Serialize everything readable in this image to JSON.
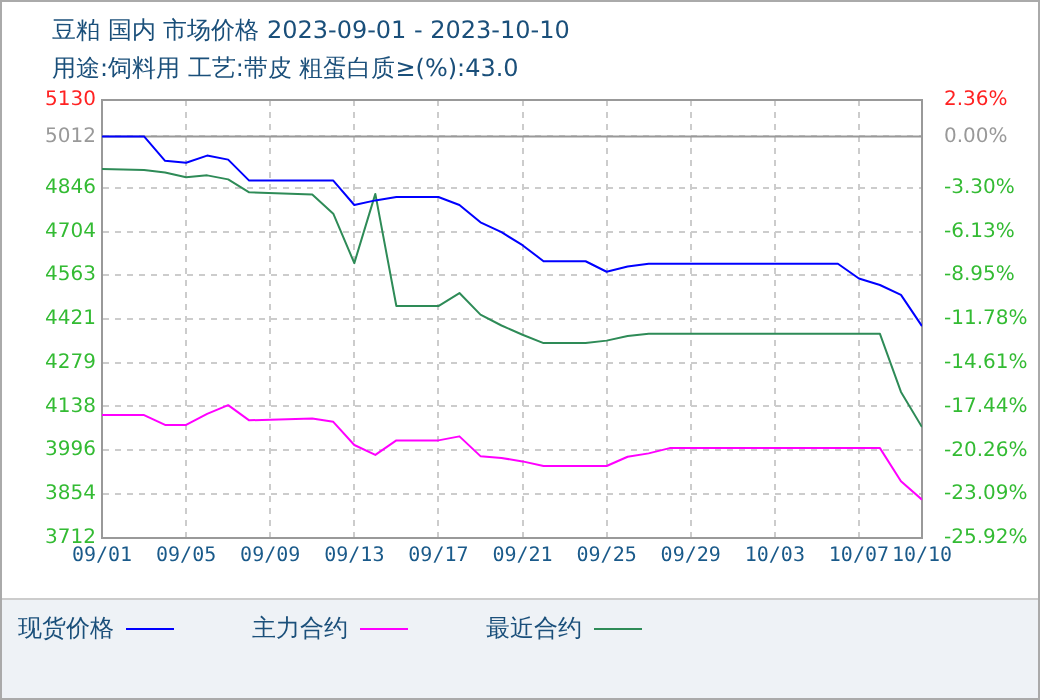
{
  "chart_data": {
    "type": "line",
    "title": "豆粕 国内 市场价格 2023-09-01 - 2023-10-10",
    "subtitle": "用途:饲料用 工艺:带皮 粗蛋白质≥(%):43.0",
    "series": [
      {
        "name": "现货价格",
        "color": "#0000ff",
        "x": [
          "2023-09-01",
          "2023-09-03",
          "2023-09-04",
          "2023-09-05",
          "2023-09-06",
          "2023-09-07",
          "2023-09-08",
          "2023-09-12",
          "2023-09-13",
          "2023-09-14",
          "2023-09-15",
          "2023-09-17",
          "2023-09-18",
          "2023-09-19",
          "2023-09-20",
          "2023-09-21",
          "2023-09-22",
          "2023-09-24",
          "2023-09-25",
          "2023-09-26",
          "2023-09-27",
          "2023-10-06",
          "2023-10-07",
          "2023-10-08",
          "2023-10-09",
          "2023-10-10"
        ],
        "values": [
          5012,
          5012,
          4933,
          4927,
          4950,
          4937,
          4869,
          4869,
          4790,
          4805,
          4816,
          4816,
          4790,
          4734,
          4702,
          4660,
          4608,
          4608,
          4574,
          4591,
          4600,
          4600,
          4552,
          4531,
          4499,
          4398
        ]
      },
      {
        "name": "主力合约",
        "color": "#ff00ff",
        "x": [
          "2023-09-01",
          "2023-09-03",
          "2023-09-04",
          "2023-09-05",
          "2023-09-06",
          "2023-09-07",
          "2023-09-08",
          "2023-09-11",
          "2023-09-12",
          "2023-09-13",
          "2023-09-14",
          "2023-09-15",
          "2023-09-17",
          "2023-09-18",
          "2023-09-19",
          "2023-09-20",
          "2023-09-21",
          "2023-09-22",
          "2023-09-25",
          "2023-09-26",
          "2023-09-27",
          "2023-09-28",
          "2023-10-08",
          "2023-10-09",
          "2023-10-10"
        ],
        "values": [
          4110,
          4110,
          4078,
          4078,
          4114,
          4142,
          4093,
          4099,
          4088,
          4013,
          3981,
          4028,
          4028,
          4041,
          3977,
          3971,
          3960,
          3945,
          3945,
          3975,
          3986,
          4003,
          4003,
          3896,
          3836
        ]
      },
      {
        "name": "最近合约",
        "color": "#2e8b57",
        "x": [
          "2023-09-01",
          "2023-09-03",
          "2023-09-04",
          "2023-09-05",
          "2023-09-06",
          "2023-09-07",
          "2023-09-08",
          "2023-09-11",
          "2023-09-12",
          "2023-09-13",
          "2023-09-14",
          "2023-09-15",
          "2023-09-17",
          "2023-09-18",
          "2023-09-19",
          "2023-09-20",
          "2023-09-21",
          "2023-09-22",
          "2023-09-24",
          "2023-09-25",
          "2023-09-26",
          "2023-09-27",
          "2023-10-08",
          "2023-10-09",
          "2023-10-10"
        ],
        "values": [
          4907,
          4903,
          4895,
          4880,
          4886,
          4873,
          4831,
          4824,
          4762,
          4602,
          4826,
          4463,
          4463,
          4505,
          4435,
          4400,
          4370,
          4343,
          4343,
          4351,
          4366,
          4373,
          4373,
          4185,
          4071
        ]
      }
    ],
    "xlim": [
      "2023-09-01",
      "2023-10-10"
    ],
    "xticks": [
      {
        "value": "2023-09-01",
        "label": "09/01"
      },
      {
        "value": "2023-09-05",
        "label": "09/05"
      },
      {
        "value": "2023-09-09",
        "label": "09/09"
      },
      {
        "value": "2023-09-13",
        "label": "09/13"
      },
      {
        "value": "2023-09-17",
        "label": "09/17"
      },
      {
        "value": "2023-09-21",
        "label": "09/21"
      },
      {
        "value": "2023-09-25",
        "label": "09/25"
      },
      {
        "value": "2023-09-29",
        "label": "09/29"
      },
      {
        "value": "2023-10-03",
        "label": "10/03"
      },
      {
        "value": "2023-10-07",
        "label": "10/07"
      },
      {
        "value": "2023-10-10",
        "label": "10/10"
      }
    ],
    "ylim": [
      3712,
      5130
    ],
    "yticks": [
      3712,
      3854,
      3996,
      4138,
      4279,
      4421,
      4563,
      4704,
      4846,
      5012,
      5130
    ],
    "y2lim": [
      -25.92,
      2.36
    ],
    "y2ticks": [
      {
        "value": -25.92,
        "label": "-25.92%"
      },
      {
        "value": -23.09,
        "label": "-23.09%"
      },
      {
        "value": -20.26,
        "label": "-20.26%"
      },
      {
        "value": -17.44,
        "label": "-17.44%"
      },
      {
        "value": -14.61,
        "label": "-14.61%"
      },
      {
        "value": -11.78,
        "label": "-11.78%"
      },
      {
        "value": -8.95,
        "label": "-8.95%"
      },
      {
        "value": -6.13,
        "label": "-6.13%"
      },
      {
        "value": -3.3,
        "label": "-3.30%"
      },
      {
        "value": 0,
        "label": "0.00%"
      },
      {
        "value": 2.36,
        "label": "2.36%"
      }
    ],
    "ref_lines": [
      {
        "axis": "y",
        "value": 5012,
        "color": "#999999"
      }
    ],
    "grid": true,
    "legend": "bottom",
    "marker": "none",
    "line_style": "solid"
  }
}
